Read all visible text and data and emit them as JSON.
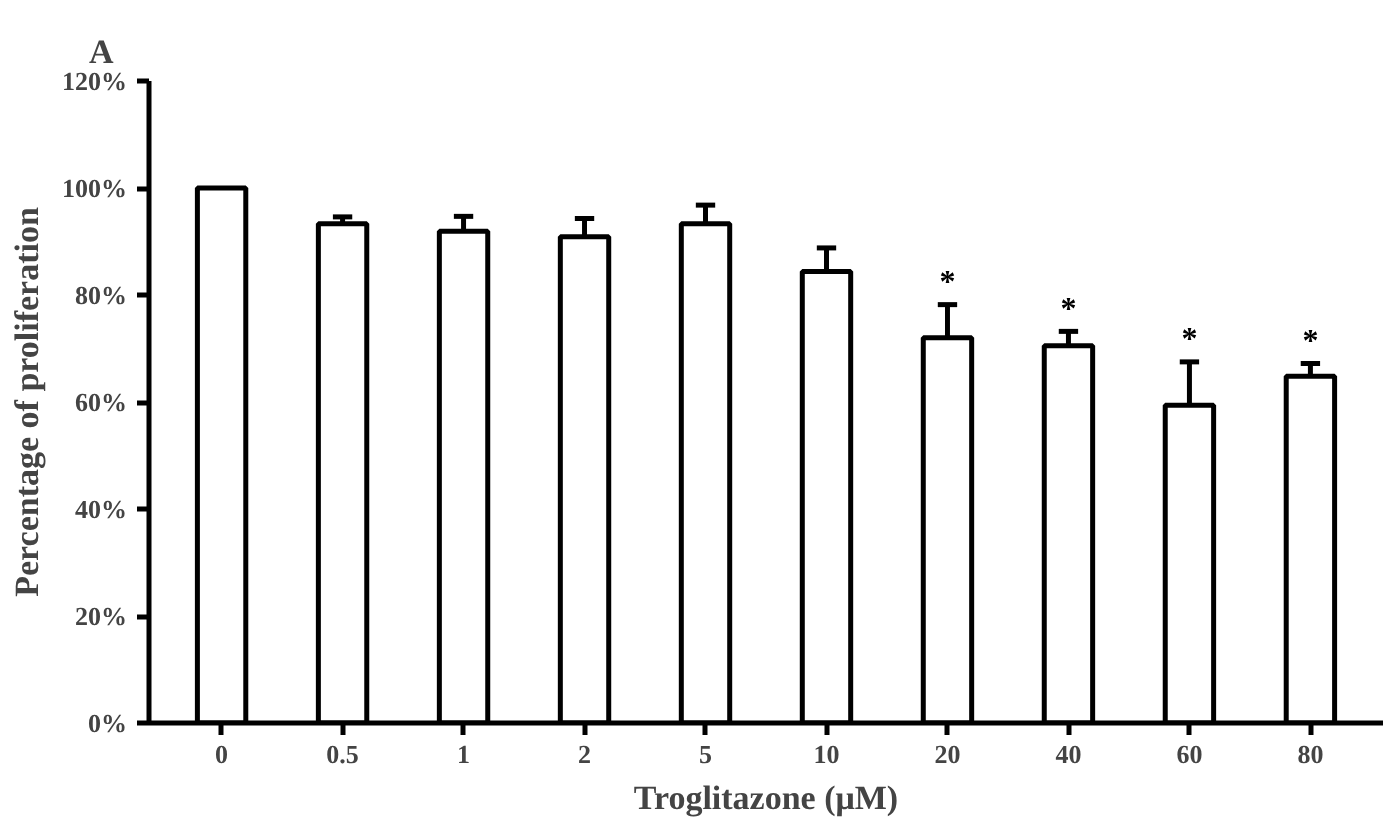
{
  "chart_data": {
    "type": "bar",
    "title": "A",
    "xlabel": "Troglitazone (μM)",
    "ylabel": "Percentage of proliferation",
    "categories": [
      "0",
      "0.5",
      "1",
      "2",
      "5",
      "10",
      "20",
      "40",
      "60",
      "80"
    ],
    "values": [
      100,
      93.3,
      91.9,
      90.9,
      93.3,
      84.4,
      72,
      70.5,
      59.4,
      64.8
    ],
    "errors": [
      null,
      [
        93.3,
        94.6
      ],
      [
        91.9,
        94.7
      ],
      [
        90.9,
        94.3
      ],
      [
        93.3,
        96.8
      ],
      [
        84.4,
        88.8
      ],
      [
        72,
        78.2
      ],
      [
        70.5,
        73.2
      ],
      [
        59.4,
        67.5
      ],
      [
        64.8,
        67.2
      ]
    ],
    "color": "#ffffff",
    "ylim": [
      0,
      120
    ],
    "yticks": [
      {
        "value": 0,
        "label": "0%"
      },
      {
        "value": 20,
        "label": "20%"
      },
      {
        "value": 40,
        "label": "40%"
      },
      {
        "value": 60,
        "label": "60%"
      },
      {
        "value": 80,
        "label": "80%"
      },
      {
        "value": 100,
        "label": "100%"
      },
      {
        "value": 120,
        "label": "120%"
      }
    ],
    "annotations": [
      "*",
      "*",
      "*",
      "*"
    ],
    "grid": false
  }
}
